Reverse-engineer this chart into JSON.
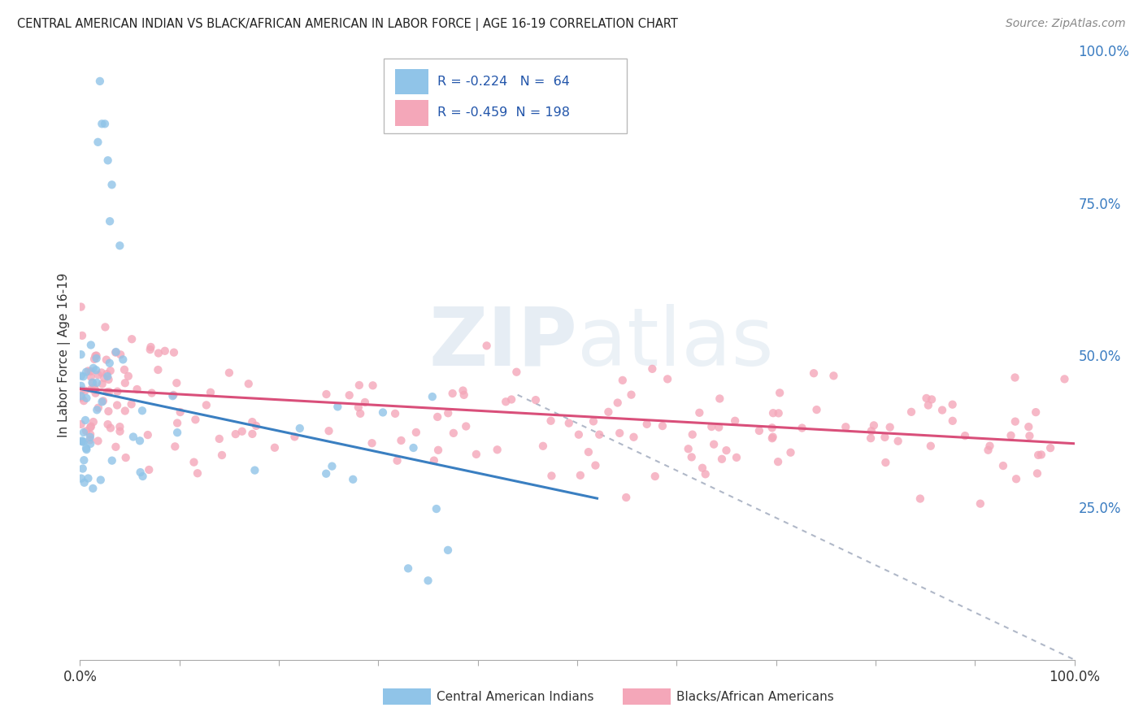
{
  "title": "CENTRAL AMERICAN INDIAN VS BLACK/AFRICAN AMERICAN IN LABOR FORCE | AGE 16-19 CORRELATION CHART",
  "source": "Source: ZipAtlas.com",
  "ylabel": "In Labor Force | Age 16-19",
  "xlim": [
    0,
    1
  ],
  "ylim": [
    0,
    1
  ],
  "xtick_labels": [
    "0.0%",
    "100.0%"
  ],
  "ytick_labels_right": [
    "100.0%",
    "75.0%",
    "50.0%",
    "25.0%"
  ],
  "ytick_positions_right": [
    1.0,
    0.75,
    0.5,
    0.25
  ],
  "R_blue": -0.224,
  "N_blue": 64,
  "R_pink": -0.459,
  "N_pink": 198,
  "blue_scatter_color": "#90c4e8",
  "pink_scatter_color": "#f4a7b9",
  "trend_blue": "#3a7fc1",
  "trend_pink": "#d94f7a",
  "trend_gray_dash": "#b0b8c8",
  "bg_color": "#ffffff",
  "watermark_zip": "ZIP",
  "watermark_atlas": "atlas",
  "legend_label_blue": "Central American Indians",
  "legend_label_pink": "Blacks/African Americans",
  "blue_trend_x": [
    0.0,
    0.52
  ],
  "blue_trend_y": [
    0.445,
    0.265
  ],
  "pink_trend_x": [
    0.0,
    1.0
  ],
  "pink_trend_y": [
    0.445,
    0.355
  ],
  "gray_trend_x": [
    0.44,
    1.0
  ],
  "gray_trend_y": [
    0.435,
    0.0
  ]
}
